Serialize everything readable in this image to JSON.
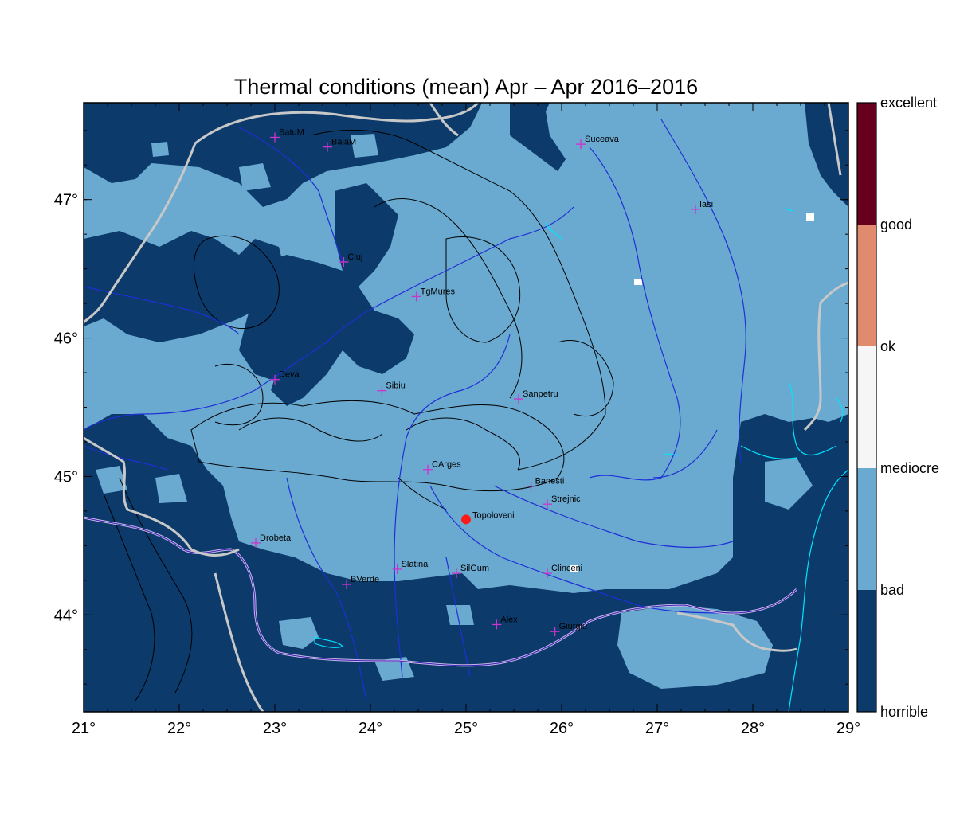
{
  "title": "Thermal conditions (mean) Apr – Apr  2016–2016",
  "chart_data": {
    "type": "heatmap",
    "title": "Thermal conditions (mean) Apr – Apr  2016–2016",
    "x_range": [
      21,
      29
    ],
    "y_range": [
      43.3,
      47.7
    ],
    "x_ticks": [
      {
        "value": 21,
        "label": "21°"
      },
      {
        "value": 22,
        "label": "22°"
      },
      {
        "value": 23,
        "label": "23°"
      },
      {
        "value": 24,
        "label": "24°"
      },
      {
        "value": 25,
        "label": "25°"
      },
      {
        "value": 26,
        "label": "26°"
      },
      {
        "value": 27,
        "label": "27°"
      },
      {
        "value": 28,
        "label": "28°"
      },
      {
        "value": 29,
        "label": "29°"
      }
    ],
    "y_ticks": [
      {
        "value": 44,
        "label": "44°"
      },
      {
        "value": 45,
        "label": "45°"
      },
      {
        "value": 46,
        "label": "46°"
      },
      {
        "value": 47,
        "label": "47°"
      }
    ],
    "legend": {
      "position": "right",
      "labels": [
        "excellent",
        "good",
        "ok",
        "mediocre",
        "bad",
        "horrible"
      ],
      "colors": [
        "#67001f",
        "#e08a6e",
        "#f6f6f6",
        "#6aaad0",
        "#0b3a6b"
      ]
    },
    "stations": [
      {
        "name": "SatuM",
        "lon": 23.0,
        "lat": 47.45
      },
      {
        "name": "BaiaM",
        "lon": 23.55,
        "lat": 47.38
      },
      {
        "name": "Suceava",
        "lon": 26.2,
        "lat": 47.4
      },
      {
        "name": "Iasi",
        "lon": 27.4,
        "lat": 46.93
      },
      {
        "name": "Cluj",
        "lon": 23.72,
        "lat": 46.55
      },
      {
        "name": "TgMures",
        "lon": 24.48,
        "lat": 46.3
      },
      {
        "name": "Deva",
        "lon": 23.0,
        "lat": 45.7
      },
      {
        "name": "Sibiu",
        "lon": 24.12,
        "lat": 45.62
      },
      {
        "name": "Sanpetru",
        "lon": 25.55,
        "lat": 45.56
      },
      {
        "name": "CArges",
        "lon": 24.6,
        "lat": 45.05
      },
      {
        "name": "Banesti",
        "lon": 25.68,
        "lat": 44.93
      },
      {
        "name": "Strejnic",
        "lon": 25.85,
        "lat": 44.8
      },
      {
        "name": "Drobeta",
        "lon": 22.8,
        "lat": 44.52
      },
      {
        "name": "Slatina",
        "lon": 24.28,
        "lat": 44.33
      },
      {
        "name": "SilGum",
        "lon": 24.9,
        "lat": 44.3
      },
      {
        "name": "Clinceni",
        "lon": 25.85,
        "lat": 44.3
      },
      {
        "name": "BVerde",
        "lon": 23.75,
        "lat": 44.22
      },
      {
        "name": "Alex",
        "lon": 25.32,
        "lat": 43.93
      },
      {
        "name": "Giurgiu",
        "lon": 25.93,
        "lat": 43.88
      }
    ],
    "highlight": {
      "name": "Topoloveni",
      "lon": 25.0,
      "lat": 44.69
    }
  }
}
